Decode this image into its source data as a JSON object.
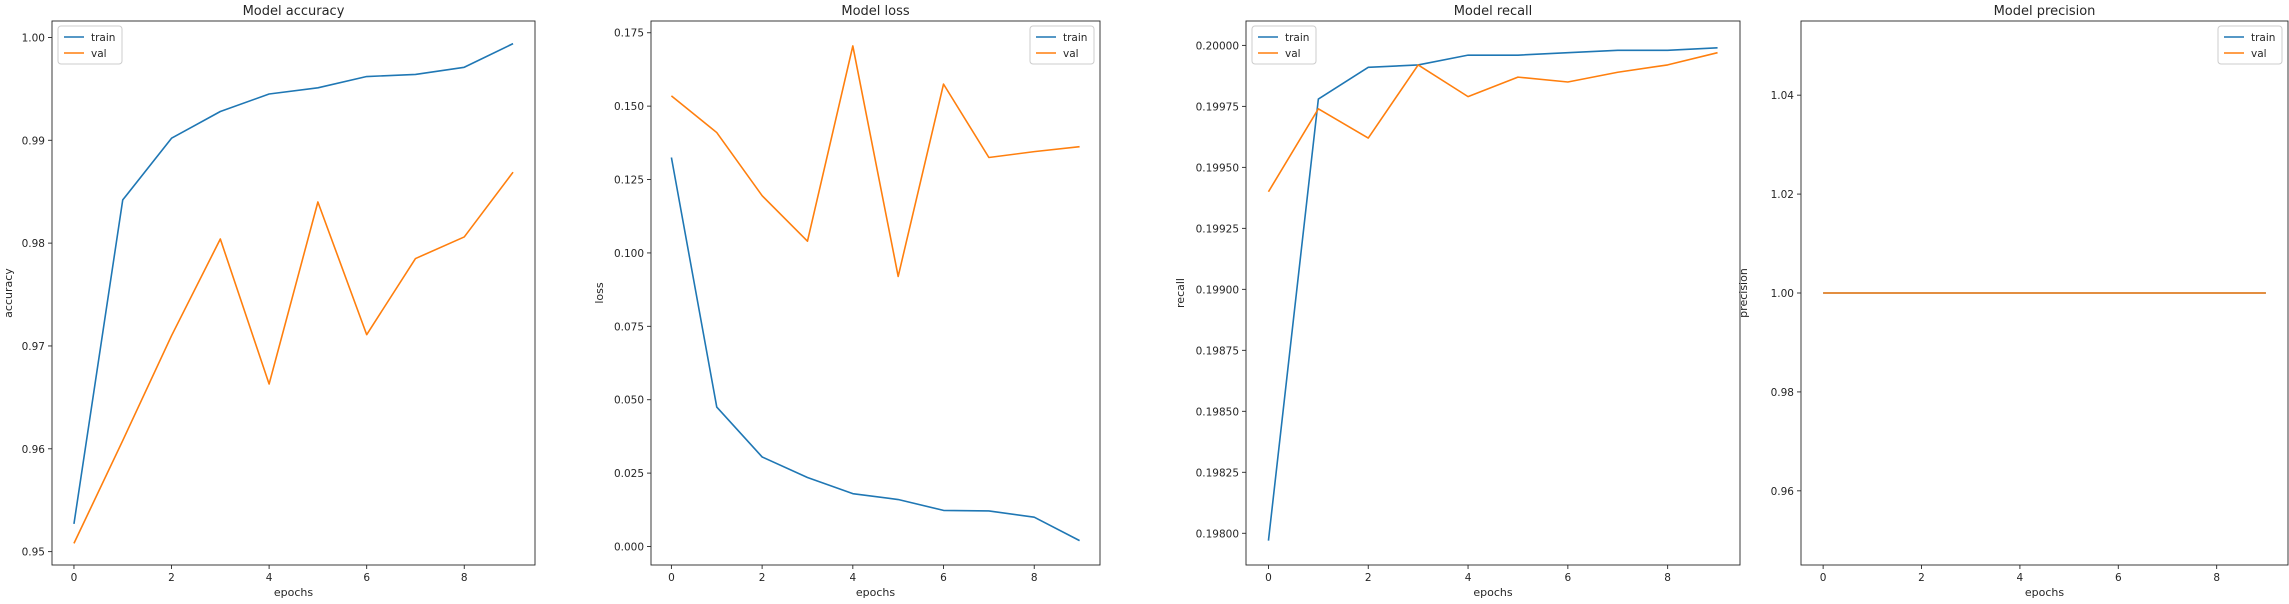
{
  "colors": {
    "train": "#1f77b4",
    "val": "#ff7f0e",
    "axes": "#262626",
    "legend_border": "#cccccc"
  },
  "chart_data": [
    {
      "type": "line",
      "title": "Model accuracy",
      "xlabel": "epochs",
      "ylabel": "accuracy",
      "x": [
        0,
        1,
        2,
        3,
        4,
        5,
        6,
        7,
        8,
        9
      ],
      "xlim": [
        -0.45,
        9.45
      ],
      "ylim": [
        0.9487,
        1.0016
      ],
      "xticks": [
        0,
        2,
        4,
        6,
        8
      ],
      "yticks": [
        0.95,
        0.96,
        0.97,
        0.98,
        0.99,
        1.0
      ],
      "ytick_labels": [
        "0.95",
        "0.96",
        "0.97",
        "0.98",
        "0.99",
        "1.00"
      ],
      "legend_position": "upper left",
      "series": [
        {
          "name": "train",
          "color": "#1f77b4",
          "values": [
            0.9527,
            0.9842,
            0.9902,
            0.9928,
            0.9945,
            0.9951,
            0.9962,
            0.9964,
            0.9971,
            0.9994
          ]
        },
        {
          "name": "val",
          "color": "#ff7f0e",
          "values": [
            0.9508,
            0.9608,
            0.971,
            0.9804,
            0.9663,
            0.984,
            0.9711,
            0.9785,
            0.9806,
            0.9869
          ]
        }
      ]
    },
    {
      "type": "line",
      "title": "Model loss",
      "xlabel": "epochs",
      "ylabel": "loss",
      "x": [
        0,
        1,
        2,
        3,
        4,
        5,
        6,
        7,
        8,
        9
      ],
      "xlim": [
        -0.45,
        9.45
      ],
      "ylim": [
        -0.0063,
        0.179
      ],
      "xticks": [
        0,
        2,
        4,
        6,
        8
      ],
      "yticks": [
        0.0,
        0.025,
        0.05,
        0.075,
        0.1,
        0.125,
        0.15,
        0.175
      ],
      "ytick_labels": [
        "0.000",
        "0.025",
        "0.050",
        "0.075",
        "0.100",
        "0.125",
        "0.150",
        "0.175"
      ],
      "legend_position": "upper right",
      "series": [
        {
          "name": "train",
          "color": "#1f77b4",
          "values": [
            0.1325,
            0.0475,
            0.0305,
            0.0235,
            0.018,
            0.016,
            0.0123,
            0.0121,
            0.01,
            0.002
          ]
        },
        {
          "name": "val",
          "color": "#ff7f0e",
          "values": [
            0.1535,
            0.141,
            0.1195,
            0.104,
            0.1705,
            0.092,
            0.1575,
            0.1325,
            0.1345,
            0.1362
          ]
        }
      ]
    },
    {
      "type": "line",
      "title": "Model recall",
      "xlabel": "epochs",
      "ylabel": "recall",
      "x": [
        0,
        1,
        2,
        3,
        4,
        5,
        6,
        7,
        8,
        9
      ],
      "xlim": [
        -0.45,
        9.45
      ],
      "ylim": [
        0.19787,
        0.2001
      ],
      "xticks": [
        0,
        2,
        4,
        6,
        8
      ],
      "yticks": [
        0.198,
        0.19825,
        0.1985,
        0.19875,
        0.199,
        0.19925,
        0.1995,
        0.19975,
        0.2
      ],
      "ytick_labels": [
        "0.19800",
        "0.19825",
        "0.19850",
        "0.19875",
        "0.19900",
        "0.19925",
        "0.19950",
        "0.19975",
        "0.20000"
      ],
      "legend_position": "upper left",
      "series": [
        {
          "name": "train",
          "color": "#1f77b4",
          "values": [
            0.19797,
            0.19978,
            0.19991,
            0.19992,
            0.19996,
            0.19996,
            0.19997,
            0.19998,
            0.19998,
            0.19999
          ]
        },
        {
          "name": "val",
          "color": "#ff7f0e",
          "values": [
            0.1994,
            0.19974,
            0.19962,
            0.19992,
            0.19979,
            0.19987,
            0.19985,
            0.19989,
            0.19992,
            0.19997
          ]
        }
      ]
    },
    {
      "type": "line",
      "title": "Model precision",
      "xlabel": "epochs",
      "ylabel": "precision",
      "x": [
        0,
        1,
        2,
        3,
        4,
        5,
        6,
        7,
        8,
        9
      ],
      "xlim": [
        -0.45,
        9.45
      ],
      "ylim": [
        0.945,
        1.055
      ],
      "xticks": [
        0,
        2,
        4,
        6,
        8
      ],
      "yticks": [
        0.96,
        0.98,
        1.0,
        1.02,
        1.04
      ],
      "ytick_labels": [
        "0.96",
        "0.98",
        "1.00",
        "1.02",
        "1.04"
      ],
      "legend_position": "upper right",
      "series": [
        {
          "name": "train",
          "color": "#1f77b4",
          "values": [
            1.0,
            1.0,
            1.0,
            1.0,
            1.0,
            1.0,
            1.0,
            1.0,
            1.0,
            1.0
          ]
        },
        {
          "name": "val",
          "color": "#ff7f0e",
          "values": [
            1.0,
            1.0,
            1.0,
            1.0,
            1.0,
            1.0,
            1.0,
            1.0,
            1.0,
            1.0
          ]
        }
      ]
    }
  ]
}
